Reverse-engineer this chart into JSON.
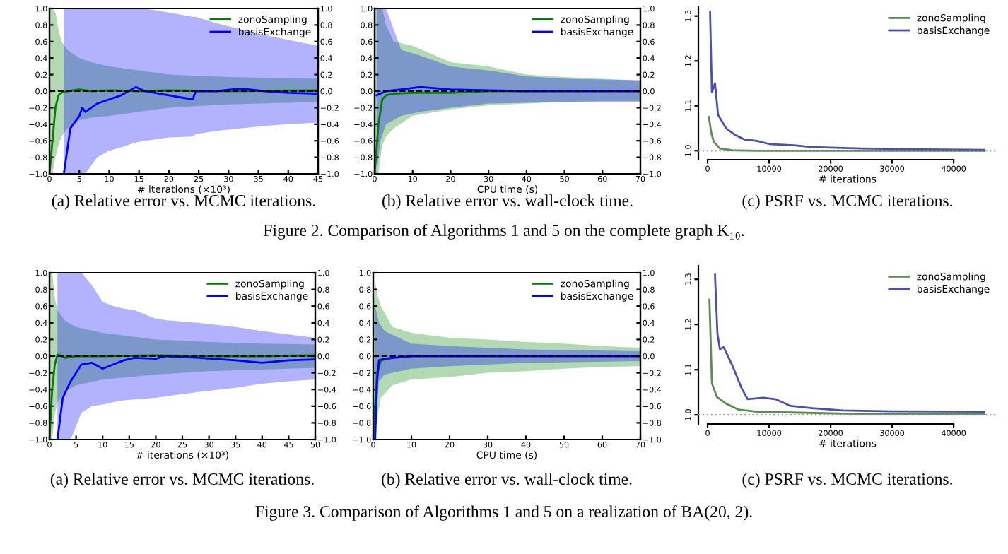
{
  "chart_data": [
    {
      "type": "line",
      "xlabel": "# iterations (×10³)",
      "xlim": [
        0,
        45
      ],
      "xticks": [
        0,
        5,
        10,
        15,
        20,
        25,
        30,
        35,
        40,
        45
      ],
      "ylim": [
        -1.0,
        1.0
      ],
      "yticks": [
        {
          "value": -1.0,
          "label": "−1.0"
        },
        {
          "value": -0.8,
          "label": "−0.8"
        },
        {
          "value": -0.6,
          "label": "−0.6"
        },
        {
          "value": -0.4,
          "label": "−0.4"
        },
        {
          "value": -0.2,
          "label": "−0.2"
        },
        {
          "value": 0.0,
          "label": "0.0"
        },
        {
          "value": 0.2,
          "label": "0.2"
        },
        {
          "value": 0.4,
          "label": "0.4"
        },
        {
          "value": 0.6,
          "label": "0.6"
        },
        {
          "value": 0.8,
          "label": "0.8"
        },
        {
          "value": 1.0,
          "label": "1.0"
        }
      ],
      "y2lim": [
        -1.0,
        1.0
      ],
      "y2ticks": [
        {
          "value": -1.0,
          "label": "−1.0"
        },
        {
          "value": -0.8,
          "label": "−0.8"
        },
        {
          "value": -0.6,
          "label": "−0.6"
        },
        {
          "value": -0.4,
          "label": "−0.4"
        },
        {
          "value": -0.2,
          "label": "−0.2"
        },
        {
          "value": 0.0,
          "label": "0.0"
        },
        {
          "value": 0.2,
          "label": "0.2"
        },
        {
          "value": 0.4,
          "label": "0.4"
        },
        {
          "value": 0.6,
          "label": "0.6"
        },
        {
          "value": 0.8,
          "label": "0.8"
        },
        {
          "value": 1.0,
          "label": "1.0"
        }
      ],
      "legend": "top right",
      "grid": false,
      "ref_lines": [
        {
          "axis": "y",
          "value": 0,
          "color": "#000000",
          "line_style": "dashed"
        }
      ],
      "series": [
        {
          "name": "zonoSampling",
          "color": "#008000",
          "x": [
            0,
            0.5,
            1,
            1.5,
            2,
            3,
            5,
            7,
            10,
            15,
            20,
            30,
            45
          ],
          "values": [
            -1,
            -0.6,
            -0.2,
            -0.05,
            -0.02,
            0.0,
            0.02,
            0.0,
            0.01,
            0.0,
            0.01,
            0.0,
            0.01
          ],
          "lower": [
            -1,
            -1,
            -0.8,
            -0.65,
            -0.55,
            -0.45,
            -0.35,
            -0.32,
            -0.3,
            -0.25,
            -0.2,
            -0.16,
            -0.13
          ],
          "upper": [
            1,
            1,
            0.95,
            0.75,
            0.6,
            0.5,
            0.4,
            0.35,
            0.3,
            0.25,
            0.2,
            0.17,
            0.15
          ]
        },
        {
          "name": "basisExchange",
          "color": "#0000ff",
          "x": [
            2.4,
            3.5,
            5,
            5.5,
            6,
            8,
            10,
            12,
            14.5,
            16,
            20,
            24,
            24.5,
            28,
            32,
            36,
            40,
            45
          ],
          "values": [
            -1,
            -0.45,
            -0.3,
            -0.2,
            -0.25,
            -0.15,
            -0.1,
            -0.05,
            0.05,
            0.0,
            -0.05,
            -0.1,
            0.0,
            0.0,
            0.03,
            0.0,
            -0.02,
            -0.03
          ],
          "lower": [
            -1,
            -1,
            -1,
            -1,
            -1,
            -0.8,
            -0.72,
            -0.68,
            -0.62,
            -0.6,
            -0.56,
            -0.55,
            -0.52,
            -0.48,
            -0.45,
            -0.42,
            -0.4,
            -0.38
          ],
          "upper": [
            1,
            1,
            1,
            1,
            1,
            1,
            1,
            1,
            1,
            1,
            0.95,
            0.9,
            0.9,
            0.82,
            0.75,
            0.68,
            0.62,
            0.55
          ]
        }
      ],
      "annotations": [
        "(a) Relative error vs. MCMC iterations.",
        "Figure 2. Comparison of Algorithms 1 and 5 on the complete graph K₁₀."
      ]
    },
    {
      "type": "line",
      "xlabel": "CPU time (s)",
      "xlim": [
        0,
        70
      ],
      "xticks": [
        0,
        10,
        20,
        30,
        40,
        50,
        60,
        70
      ],
      "ylim": [
        -1.0,
        1.0
      ],
      "yticks": [
        {
          "value": -1.0,
          "label": "−1.0"
        },
        {
          "value": -0.8,
          "label": "−0.8"
        },
        {
          "value": -0.6,
          "label": "−0.6"
        },
        {
          "value": -0.4,
          "label": "−0.4"
        },
        {
          "value": -0.2,
          "label": "−0.2"
        },
        {
          "value": 0.0,
          "label": "0.0"
        },
        {
          "value": 0.2,
          "label": "0.2"
        },
        {
          "value": 0.4,
          "label": "0.4"
        },
        {
          "value": 0.6,
          "label": "0.6"
        },
        {
          "value": 0.8,
          "label": "0.8"
        },
        {
          "value": 1.0,
          "label": "1.0"
        }
      ],
      "y2lim": [
        -1.0,
        1.0
      ],
      "y2ticks": [
        {
          "value": -1.0,
          "label": "−1.0"
        },
        {
          "value": -0.8,
          "label": "−0.8"
        },
        {
          "value": -0.6,
          "label": "−0.6"
        },
        {
          "value": -0.4,
          "label": "−0.4"
        },
        {
          "value": -0.2,
          "label": "−0.2"
        },
        {
          "value": 0.0,
          "label": "0.0"
        },
        {
          "value": 0.2,
          "label": "0.2"
        },
        {
          "value": 0.4,
          "label": "0.4"
        },
        {
          "value": 0.6,
          "label": "0.6"
        },
        {
          "value": 0.8,
          "label": "0.8"
        },
        {
          "value": 1.0,
          "label": "1.0"
        }
      ],
      "legend": "top right",
      "grid": false,
      "ref_lines": [
        {
          "axis": "y",
          "value": 0,
          "color": "#000000",
          "line_style": "dashed"
        }
      ],
      "series": [
        {
          "name": "zonoSampling",
          "color": "#008000",
          "x": [
            0,
            1,
            2,
            3,
            5,
            10,
            20,
            30,
            40,
            50,
            60,
            70
          ],
          "values": [
            -1,
            -0.4,
            -0.1,
            -0.05,
            -0.03,
            -0.02,
            -0.02,
            0.0,
            0.0,
            null,
            null,
            null
          ],
          "lower": [
            -1,
            -1,
            -0.65,
            -0.55,
            -0.45,
            -0.3,
            -0.22,
            -0.17,
            -0.15,
            -0.13,
            -0.12,
            -0.12
          ],
          "upper": [
            1,
            1,
            1,
            0.8,
            0.6,
            0.55,
            0.35,
            0.3,
            0.2,
            0.17,
            0.15,
            0.13
          ]
        },
        {
          "name": "basisExchange",
          "color": "#0000ff",
          "x": [
            0.5,
            1.5,
            3,
            7,
            12,
            20,
            30,
            40,
            50,
            60,
            70
          ],
          "values": [
            -0.05,
            -0.03,
            0.0,
            0.02,
            0.05,
            0.02,
            0.01,
            0.0,
            0.0,
            0.0,
            0.0
          ],
          "lower": [
            -1,
            -0.6,
            -0.4,
            -0.3,
            -0.25,
            -0.2,
            -0.15,
            -0.14,
            -0.13,
            -0.13,
            -0.13
          ],
          "upper": [
            1,
            1,
            1,
            0.5,
            0.43,
            0.3,
            0.25,
            0.18,
            0.15,
            0.14,
            0.13
          ]
        }
      ],
      "annotations": [
        "(b) Relative error vs. wall-clock time."
      ]
    },
    {
      "type": "line",
      "xlabel": "# iterations",
      "xlim": [
        -1500,
        47000
      ],
      "xticks": [
        0,
        10000,
        20000,
        30000,
        40000
      ],
      "ylim": [
        0.98,
        1.32
      ],
      "yticks": [
        {
          "value": 1.0,
          "label": "1.0"
        },
        {
          "value": 1.1,
          "label": "1.1"
        },
        {
          "value": 1.2,
          "label": "1.2"
        },
        {
          "value": 1.3,
          "label": "1.3"
        }
      ],
      "legend": "top right",
      "grid": false,
      "ref_lines": [
        {
          "axis": "y",
          "value": 1.0,
          "color": "#999999",
          "line_style": "dotted"
        }
      ],
      "series": [
        {
          "name": "zonoSampling",
          "color": "#5b8c54",
          "x": [
            200,
            600,
            1000,
            2000,
            4000,
            8000,
            20000,
            45000
          ],
          "values": [
            1.075,
            1.04,
            1.02,
            1.005,
            1.001,
            1.0,
            1.0,
            1.0
          ]
        },
        {
          "name": "basisExchange",
          "color": "#4b50b0",
          "x": [
            400,
            700,
            1200,
            1700,
            3000,
            4500,
            6000,
            8000,
            10000,
            14000,
            17000,
            25000,
            35000,
            45000
          ],
          "values": [
            1.31,
            1.13,
            1.15,
            1.08,
            1.05,
            1.035,
            1.025,
            1.022,
            1.015,
            1.012,
            1.008,
            1.005,
            1.003,
            1.002
          ]
        }
      ],
      "annotations": [
        "(c) PSRF vs. MCMC iterations."
      ]
    },
    {
      "type": "line",
      "xlabel": "# iterations (×10³)",
      "xlim": [
        0,
        50
      ],
      "xticks": [
        0,
        5,
        10,
        15,
        20,
        25,
        30,
        35,
        40,
        45,
        50
      ],
      "ylim": [
        -1.0,
        1.0
      ],
      "yticks": [
        {
          "value": -1.0,
          "label": "−1.0"
        },
        {
          "value": -0.8,
          "label": "−0.8"
        },
        {
          "value": -0.6,
          "label": "−0.6"
        },
        {
          "value": -0.4,
          "label": "−0.4"
        },
        {
          "value": -0.2,
          "label": "−0.2"
        },
        {
          "value": 0.0,
          "label": "0.0"
        },
        {
          "value": 0.2,
          "label": "0.2"
        },
        {
          "value": 0.4,
          "label": "0.4"
        },
        {
          "value": 0.6,
          "label": "0.6"
        },
        {
          "value": 0.8,
          "label": "0.8"
        },
        {
          "value": 1.0,
          "label": "1.0"
        }
      ],
      "y2lim": [
        -1.0,
        1.0
      ],
      "y2ticks": [
        {
          "value": -1.0,
          "label": "−1.0"
        },
        {
          "value": -0.8,
          "label": "−0.8"
        },
        {
          "value": -0.6,
          "label": "−0.6"
        },
        {
          "value": -0.4,
          "label": "−0.4"
        },
        {
          "value": -0.2,
          "label": "−0.2"
        },
        {
          "value": 0.0,
          "label": "0.0"
        },
        {
          "value": 0.2,
          "label": "0.2"
        },
        {
          "value": 0.4,
          "label": "0.4"
        },
        {
          "value": 0.6,
          "label": "0.6"
        },
        {
          "value": 0.8,
          "label": "0.8"
        },
        {
          "value": 1.0,
          "label": "1.0"
        }
      ],
      "legend": "top right",
      "grid": false,
      "ref_lines": [
        {
          "axis": "y",
          "value": 0,
          "color": "#000000",
          "line_style": "dashed"
        }
      ],
      "series": [
        {
          "name": "zonoSampling",
          "color": "#008000",
          "x": [
            0,
            0.5,
            1,
            1.5,
            3,
            5,
            10,
            20,
            30,
            40,
            50
          ],
          "values": [
            -1,
            -0.4,
            -0.1,
            0.02,
            -0.02,
            0.0,
            0.0,
            0.01,
            0.0,
            0.0,
            0.01
          ],
          "lower": [
            -1,
            -1,
            -0.7,
            -0.55,
            -0.42,
            -0.35,
            -0.28,
            -0.22,
            -0.18,
            -0.16,
            -0.14
          ],
          "upper": [
            1,
            1,
            0.7,
            0.55,
            0.42,
            0.35,
            0.28,
            0.2,
            0.17,
            0.15,
            0.14
          ]
        },
        {
          "name": "basisExchange",
          "color": "#0000ff",
          "x": [
            1.5,
            2.5,
            4,
            6,
            8,
            10,
            12,
            14,
            16,
            20,
            22,
            28,
            35,
            40,
            45,
            50
          ],
          "values": [
            -1,
            -0.5,
            -0.3,
            -0.1,
            -0.08,
            -0.15,
            -0.1,
            -0.05,
            -0.02,
            -0.03,
            0.0,
            -0.02,
            -0.05,
            -0.08,
            -0.05,
            -0.04
          ],
          "lower": [
            -1,
            -1,
            -1,
            -0.68,
            -0.6,
            -0.58,
            -0.55,
            -0.53,
            -0.52,
            -0.5,
            -0.48,
            -0.43,
            -0.38,
            -0.33,
            -0.3,
            -0.28
          ],
          "upper": [
            1,
            1,
            1,
            1,
            0.85,
            0.65,
            0.6,
            0.57,
            0.55,
            0.45,
            0.43,
            0.4,
            0.35,
            0.3,
            0.26,
            0.22
          ]
        }
      ],
      "annotations": [
        "(a) Relative error vs. MCMC iterations.",
        "Figure 3. Comparison of Algorithms 1 and 5 on a realization of BA(20, 2)."
      ]
    },
    {
      "type": "line",
      "xlabel": "CPU time (s)",
      "xlim": [
        0,
        70
      ],
      "xticks": [
        0,
        10,
        20,
        30,
        40,
        50,
        60,
        70
      ],
      "ylim": [
        -1.0,
        1.0
      ],
      "yticks": [
        {
          "value": -1.0,
          "label": "−1.0"
        },
        {
          "value": -0.8,
          "label": "−0.8"
        },
        {
          "value": -0.6,
          "label": "−0.6"
        },
        {
          "value": -0.4,
          "label": "−0.4"
        },
        {
          "value": -0.2,
          "label": "−0.2"
        },
        {
          "value": 0.0,
          "label": "0.0"
        },
        {
          "value": 0.2,
          "label": "0.2"
        },
        {
          "value": 0.4,
          "label": "0.4"
        },
        {
          "value": 0.6,
          "label": "0.6"
        },
        {
          "value": 0.8,
          "label": "0.8"
        },
        {
          "value": 1.0,
          "label": "1.0"
        }
      ],
      "y2lim": [
        -1.0,
        1.0
      ],
      "y2ticks": [
        {
          "value": -1.0,
          "label": "−1.0"
        },
        {
          "value": -0.8,
          "label": "−0.8"
        },
        {
          "value": -0.6,
          "label": "−0.6"
        },
        {
          "value": -0.4,
          "label": "−0.4"
        },
        {
          "value": -0.2,
          "label": "−0.2"
        },
        {
          "value": 0.0,
          "label": "0.0"
        },
        {
          "value": 0.2,
          "label": "0.2"
        },
        {
          "value": 0.4,
          "label": "0.4"
        },
        {
          "value": 0.6,
          "label": "0.6"
        },
        {
          "value": 0.8,
          "label": "0.8"
        },
        {
          "value": 1.0,
          "label": "1.0"
        }
      ],
      "legend": "top right",
      "grid": false,
      "ref_lines": [
        {
          "axis": "y",
          "value": 0,
          "color": "#000000",
          "line_style": "dashed"
        }
      ],
      "series": [
        {
          "name": "zonoSampling",
          "color": "#008000",
          "x": [
            0,
            0.5,
            1,
            2,
            5,
            10,
            20,
            30,
            40,
            50,
            60,
            70
          ],
          "values": [
            -1,
            -0.6,
            -0.2,
            -0.05,
            -0.02,
            null,
            null,
            null,
            null,
            null,
            null,
            null
          ],
          "lower": [
            -1,
            -1,
            -0.75,
            -0.5,
            -0.35,
            -0.28,
            -0.25,
            -0.2,
            -0.18,
            -0.15,
            -0.13,
            -0.12
          ],
          "upper": [
            0.5,
            0.9,
            0.75,
            0.6,
            0.35,
            0.28,
            0.22,
            0.2,
            0.17,
            0.15,
            0.12,
            0.1
          ]
        },
        {
          "name": "basisExchange",
          "color": "#0000ff",
          "x": [
            0.5,
            1,
            1.5,
            3,
            10,
            20,
            40,
            70
          ],
          "values": [
            -1,
            -0.3,
            -0.05,
            -0.03,
            0.0,
            0.0,
            0.0,
            0.0
          ],
          "lower": [
            -1,
            -0.6,
            -0.3,
            -0.22,
            -0.15,
            -0.12,
            -0.08,
            -0.06
          ],
          "upper": [
            0.6,
            0.5,
            0.4,
            0.3,
            0.15,
            0.12,
            0.08,
            0.06
          ]
        }
      ],
      "annotations": [
        "(b) Relative error vs. wall-clock time."
      ]
    },
    {
      "type": "line",
      "xlabel": "# iterations",
      "xlim": [
        -1500,
        47000
      ],
      "xticks": [
        0,
        10000,
        20000,
        30000,
        40000
      ],
      "ylim": [
        0.98,
        1.33
      ],
      "yticks": [
        {
          "value": 1.0,
          "label": "1.0"
        },
        {
          "value": 1.1,
          "label": "1.1"
        },
        {
          "value": 1.2,
          "label": "1.2"
        },
        {
          "value": 1.3,
          "label": "1.3"
        }
      ],
      "legend": "top right",
      "grid": false,
      "ref_lines": [
        {
          "axis": "y",
          "value": 1.0,
          "color": "#999999",
          "line_style": "dotted"
        }
      ],
      "series": [
        {
          "name": "zonoSampling",
          "color": "#5b8c54",
          "x": [
            300,
            700,
            1500,
            3000,
            5000,
            8000,
            15000,
            25000,
            45000
          ],
          "values": [
            1.255,
            1.07,
            1.04,
            1.025,
            1.012,
            1.007,
            1.005,
            1.002,
            1.002
          ]
        },
        {
          "name": "basisExchange",
          "color": "#4b50b0",
          "x": [
            1200,
            1600,
            2000,
            2600,
            4000,
            5500,
            6500,
            9000,
            11000,
            13500,
            17000,
            22000,
            30000,
            45000
          ],
          "values": [
            1.31,
            1.18,
            1.145,
            1.15,
            1.11,
            1.06,
            1.035,
            1.038,
            1.035,
            1.02,
            1.015,
            1.01,
            1.008,
            1.007
          ]
        }
      ],
      "annotations": [
        "(c) PSRF vs. MCMC iterations."
      ]
    }
  ]
}
